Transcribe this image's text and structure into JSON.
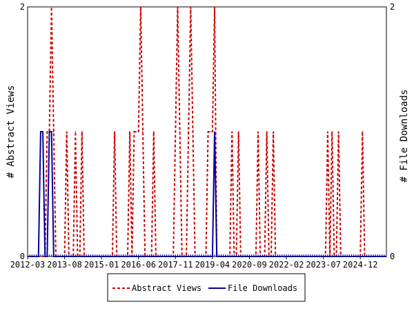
{
  "chart_data": {
    "type": "line",
    "y_left_label": "# Abstract Views",
    "y_right_label": "# File Downloads",
    "y_left_lim": [
      0,
      2
    ],
    "y_right_lim": [
      0,
      2
    ],
    "y_left_ticks": [
      "0",
      "2"
    ],
    "y_right_ticks": [
      "0",
      "2"
    ],
    "x_range": [
      "2012-03",
      "2025-12"
    ],
    "x_tick_labels": [
      "2012-03",
      "2013-08",
      "2015-01",
      "2016-06",
      "2017-11",
      "2019-04",
      "2020-09",
      "2022-02",
      "2023-07",
      "2024-12"
    ],
    "grid": false,
    "legend_position": "bottom",
    "series": [
      {
        "name": "Abstract Views",
        "color": "#cc0000",
        "dash": "dashed",
        "axis": "left",
        "points": [
          [
            "2012-12",
            1
          ],
          [
            "2013-01",
            1
          ],
          [
            "2013-02",
            2
          ],
          [
            "2013-03",
            1
          ],
          [
            "2013-09",
            1
          ],
          [
            "2014-01",
            1
          ],
          [
            "2014-04",
            1
          ],
          [
            "2015-07",
            1
          ],
          [
            "2016-02",
            1
          ],
          [
            "2016-04",
            1
          ],
          [
            "2016-05",
            1
          ],
          [
            "2016-06",
            1
          ],
          [
            "2016-07",
            2
          ],
          [
            "2016-08",
            1
          ],
          [
            "2017-01",
            1
          ],
          [
            "2017-11",
            1
          ],
          [
            "2017-12",
            2
          ],
          [
            "2018-01",
            1
          ],
          [
            "2018-05",
            1
          ],
          [
            "2018-06",
            2
          ],
          [
            "2018-07",
            1
          ],
          [
            "2019-02",
            1
          ],
          [
            "2019-03",
            1
          ],
          [
            "2019-04",
            1
          ],
          [
            "2019-05",
            2
          ],
          [
            "2020-01",
            1
          ],
          [
            "2020-04",
            1
          ],
          [
            "2021-01",
            1
          ],
          [
            "2021-05",
            1
          ],
          [
            "2021-08",
            1
          ],
          [
            "2023-09",
            1
          ],
          [
            "2023-11",
            1
          ],
          [
            "2024-02",
            1
          ],
          [
            "2025-01",
            1
          ]
        ]
      },
      {
        "name": "File Downloads",
        "color": "#000099",
        "dash": "solid",
        "axis": "right",
        "points": [
          [
            "2012-09",
            1
          ],
          [
            "2012-10",
            1
          ],
          [
            "2013-01",
            1
          ],
          [
            "2013-02",
            1
          ],
          [
            "2019-05",
            1
          ]
        ]
      }
    ]
  }
}
